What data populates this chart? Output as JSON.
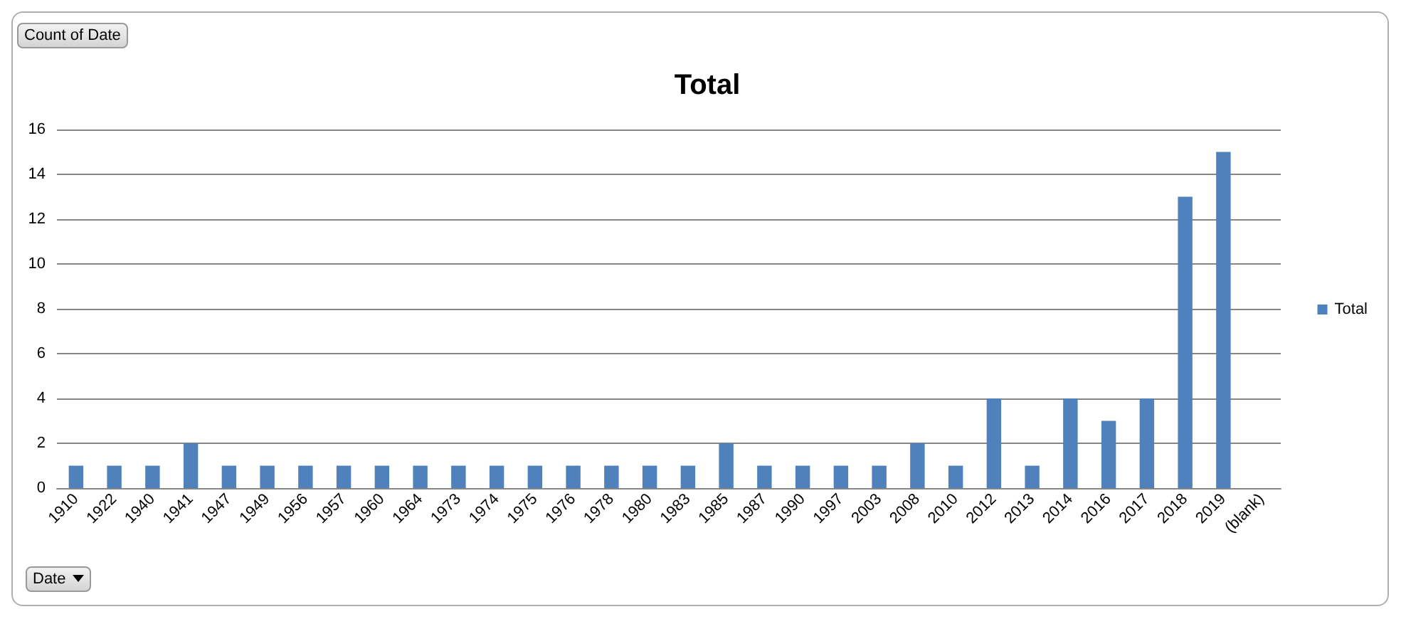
{
  "chart_data": {
    "type": "bar",
    "title": "Total",
    "categories": [
      "1910",
      "1922",
      "1940",
      "1941",
      "1947",
      "1949",
      "1956",
      "1957",
      "1960",
      "1964",
      "1973",
      "1974",
      "1975",
      "1976",
      "1978",
      "1980",
      "1983",
      "1985",
      "1987",
      "1990",
      "1997",
      "2003",
      "2008",
      "2010",
      "2012",
      "2013",
      "2014",
      "2016",
      "2017",
      "2018",
      "2019",
      "(blank)"
    ],
    "series": [
      {
        "name": "Total",
        "color": "#4f81bd",
        "values": [
          1,
          1,
          1,
          2,
          1,
          1,
          1,
          1,
          1,
          1,
          1,
          1,
          1,
          1,
          1,
          1,
          1,
          2,
          1,
          1,
          1,
          1,
          2,
          1,
          4,
          1,
          4,
          3,
          4,
          13,
          15,
          null
        ]
      }
    ],
    "ylim": [
      0,
      16
    ],
    "yticks": [
      0,
      2,
      4,
      6,
      8,
      10,
      12,
      14,
      16
    ],
    "grid": "y",
    "legend": "right",
    "annotations": [
      "Count of Date",
      "Date"
    ]
  }
}
